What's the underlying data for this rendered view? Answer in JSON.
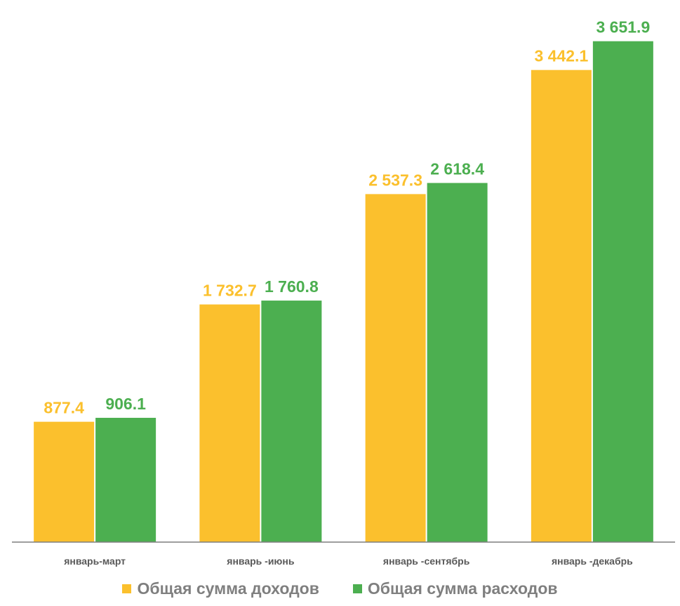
{
  "chart_data": {
    "type": "bar",
    "categories": [
      "январь-март",
      "январь -июнь",
      "январь -сентябрь",
      "январь -декабрь"
    ],
    "series": [
      {
        "name": "Общая сумма доходов",
        "values": [
          877.4,
          1732.7,
          2537.3,
          3442.1
        ],
        "labels": [
          "877.4",
          "1 732.7",
          "2 537.3",
          "3 442.1"
        ],
        "color": "#fbc02d"
      },
      {
        "name": "Общая сумма расходов",
        "values": [
          906.1,
          1760.8,
          2618.4,
          3651.9
        ],
        "labels": [
          "906.1",
          "1 760.8",
          "2 618.4",
          "3 651.9"
        ],
        "color": "#4caf50"
      }
    ],
    "ylim": [
      0,
      3850
    ],
    "grid": false,
    "legend_position": "bottom",
    "axis_color": "#7f7f7f",
    "tick_label_color": "#595959"
  }
}
